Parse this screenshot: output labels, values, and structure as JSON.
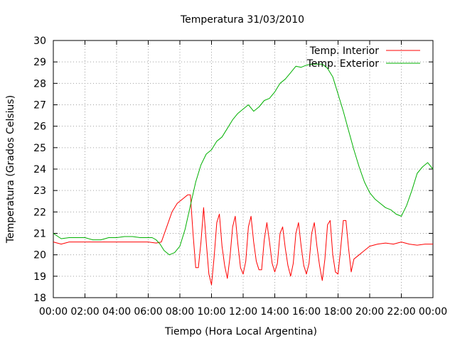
{
  "chart_data": {
    "type": "line",
    "title": "Temperatura 31/03/2010",
    "xlabel": "Tiempo (Hora Local Argentina)",
    "ylabel": "Temperatura (Grados Celsius)",
    "xlim": [
      "00:00",
      "24:00"
    ],
    "ylim": [
      18,
      30
    ],
    "grid": true,
    "legend_position": "top-right",
    "x_tick_labels": [
      "00:00",
      "02:00",
      "04:00",
      "06:00",
      "08:00",
      "10:00",
      "12:00",
      "14:00",
      "16:00",
      "18:00",
      "20:00",
      "22:00",
      "00:00"
    ],
    "y_tick_labels": [
      "18",
      "19",
      "20",
      "21",
      "22",
      "23",
      "24",
      "25",
      "26",
      "27",
      "28",
      "29",
      "30"
    ],
    "series": [
      {
        "name": "Temp. Interior",
        "color": "#ff0000",
        "x": [
          "00:00",
          "00:30",
          "01:00",
          "02:00",
          "04:00",
          "06:00",
          "06:30",
          "06:50",
          "07:10",
          "07:30",
          "07:50",
          "08:10",
          "08:30",
          "08:40",
          "08:50",
          "09:00",
          "09:10",
          "09:20",
          "09:30",
          "09:40",
          "09:50",
          "10:00",
          "10:10",
          "10:20",
          "10:30",
          "10:40",
          "10:50",
          "11:00",
          "11:10",
          "11:20",
          "11:30",
          "11:40",
          "11:50",
          "12:00",
          "12:10",
          "12:20",
          "12:30",
          "12:40",
          "12:50",
          "13:00",
          "13:10",
          "13:20",
          "13:30",
          "13:40",
          "13:50",
          "14:00",
          "14:10",
          "14:20",
          "14:30",
          "14:40",
          "14:50",
          "15:00",
          "15:10",
          "15:20",
          "15:30",
          "15:40",
          "15:50",
          "16:00",
          "16:10",
          "16:20",
          "16:30",
          "16:40",
          "16:50",
          "17:00",
          "17:10",
          "17:20",
          "17:30",
          "17:40",
          "17:50",
          "18:00",
          "18:10",
          "18:20",
          "18:30",
          "18:40",
          "18:50",
          "19:00",
          "19:20",
          "19:40",
          "20:00",
          "20:30",
          "21:00",
          "21:30",
          "22:00",
          "22:30",
          "23:00",
          "23:30",
          "24:00"
        ],
        "values": [
          20.6,
          20.5,
          20.6,
          20.6,
          20.6,
          20.6,
          20.55,
          20.6,
          21.3,
          22.0,
          22.4,
          22.6,
          22.8,
          22.8,
          21.0,
          19.4,
          19.4,
          20.6,
          22.2,
          20.6,
          19.1,
          18.6,
          19.9,
          21.5,
          21.9,
          20.4,
          19.5,
          18.9,
          19.9,
          21.3,
          21.8,
          20.5,
          19.4,
          19.1,
          19.7,
          21.3,
          21.8,
          20.6,
          19.7,
          19.3,
          19.3,
          20.7,
          21.5,
          20.6,
          19.6,
          19.2,
          19.6,
          21.0,
          21.3,
          20.3,
          19.5,
          19.0,
          19.6,
          21.0,
          21.5,
          20.4,
          19.5,
          19.1,
          19.6,
          21.0,
          21.5,
          20.4,
          19.5,
          18.8,
          19.8,
          21.4,
          21.6,
          20.0,
          19.2,
          19.1,
          20.3,
          21.6,
          21.6,
          20.3,
          19.2,
          19.8,
          20.0,
          20.2,
          20.4,
          20.5,
          20.55,
          20.5,
          20.6,
          20.5,
          20.45,
          20.5,
          20.5
        ]
      },
      {
        "name": "Temp. Exterior",
        "color": "#00b000",
        "x": [
          "00:00",
          "00:30",
          "01:00",
          "02:00",
          "02:30",
          "03:00",
          "03:30",
          "04:00",
          "04:30",
          "05:00",
          "05:30",
          "06:00",
          "06:15",
          "06:30",
          "06:45",
          "07:00",
          "07:20",
          "07:40",
          "08:00",
          "08:20",
          "08:40",
          "09:00",
          "09:20",
          "09:40",
          "10:00",
          "10:20",
          "10:40",
          "11:00",
          "11:20",
          "11:40",
          "12:00",
          "12:20",
          "12:40",
          "13:00",
          "13:20",
          "13:40",
          "14:00",
          "14:20",
          "14:40",
          "15:00",
          "15:20",
          "15:40",
          "16:00",
          "16:20",
          "16:40",
          "17:00",
          "17:20",
          "17:40",
          "18:00",
          "18:20",
          "18:40",
          "19:00",
          "19:20",
          "19:40",
          "20:00",
          "20:20",
          "20:40",
          "21:00",
          "21:20",
          "21:40",
          "22:00",
          "22:20",
          "22:40",
          "23:00",
          "23:20",
          "23:40",
          "24:00"
        ],
        "values": [
          21.0,
          20.75,
          20.8,
          20.8,
          20.7,
          20.7,
          20.8,
          20.8,
          20.85,
          20.85,
          20.8,
          20.8,
          20.8,
          20.7,
          20.5,
          20.2,
          20.0,
          20.1,
          20.4,
          21.2,
          22.3,
          23.4,
          24.2,
          24.7,
          24.9,
          25.3,
          25.5,
          25.9,
          26.3,
          26.6,
          26.8,
          27.0,
          26.7,
          26.9,
          27.2,
          27.3,
          27.6,
          28.0,
          28.2,
          28.5,
          28.8,
          28.75,
          28.85,
          28.9,
          28.9,
          28.9,
          28.7,
          28.3,
          27.5,
          26.7,
          25.8,
          24.9,
          24.1,
          23.4,
          22.9,
          22.6,
          22.4,
          22.2,
          22.1,
          21.9,
          21.8,
          22.3,
          23.0,
          23.8,
          24.1,
          24.3,
          24.0
        ]
      }
    ]
  }
}
